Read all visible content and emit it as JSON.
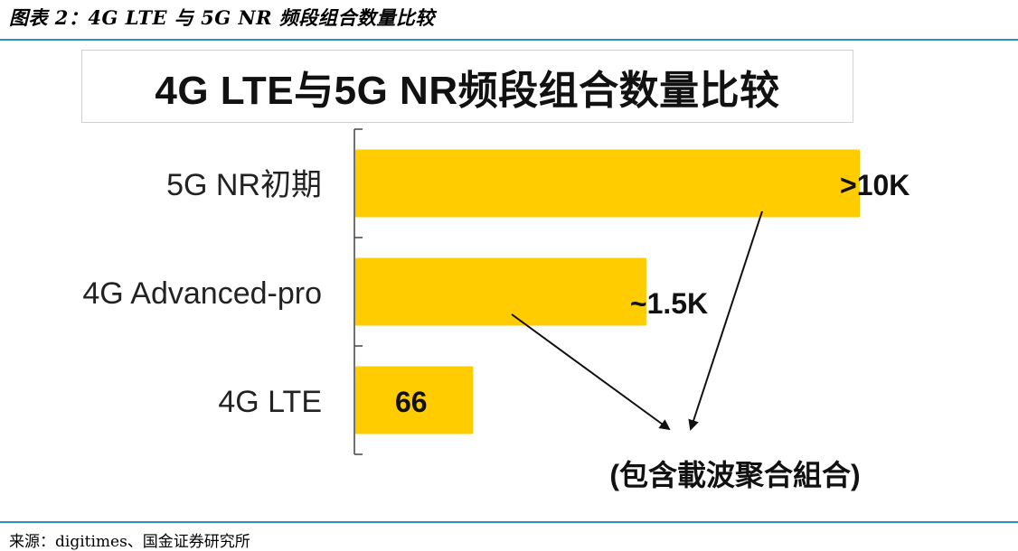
{
  "header": {
    "caption": "图表 2：4G LTE 与 5G NR 频段组合数量比较"
  },
  "footer": {
    "source": "来源：digitimes、国金证券研究所"
  },
  "colors": {
    "bar": "#ffcc00",
    "rule": "#2e8fc9",
    "axis": "#444444",
    "arrow": "#111111"
  },
  "chart_data": {
    "type": "bar",
    "orientation": "horizontal",
    "title": "4G LTE与5G NR频段组合数量比较",
    "categories": [
      "5G NR初期",
      "4G Advanced-pro",
      "4G LTE"
    ],
    "values": [
      10000,
      1500,
      66
    ],
    "value_labels": [
      ">10K",
      "~1.5K",
      "66"
    ],
    "annotation": "(包含載波聚合組合)",
    "grid": false,
    "legend": "none"
  }
}
